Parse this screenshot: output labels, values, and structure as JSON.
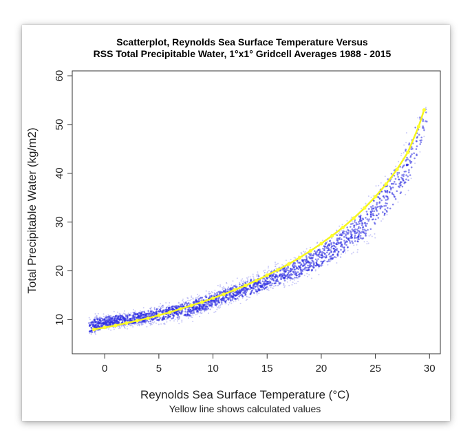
{
  "chart_data": {
    "type": "scatter",
    "title": "Scatterplot, Reynolds Sea Surface Temperature Versus",
    "subtitle": "RSS Total Precipitable Water, 1°x1° Gridcell Averages 1988 - 2015",
    "xlabel": "Reynolds Sea Surface Temperature (°C)",
    "ylabel": "Total Precipitable Water (kg/m2)",
    "caption": "Yellow line shows calculated values",
    "xlim": [
      -3,
      31
    ],
    "ylim": [
      3,
      61
    ],
    "x_ticks": [
      0,
      5,
      10,
      15,
      20,
      25,
      30
    ],
    "y_ticks": [
      10,
      20,
      30,
      40,
      50,
      60
    ],
    "grid": false,
    "colors": {
      "points": "#2a2ae0",
      "fit_line": "#f5f51e",
      "fit_points": "#ffff30",
      "axes": "#333333"
    },
    "series": [
      {
        "name": "Yellow line shows calculated values",
        "x": [
          -1,
          0,
          1,
          2,
          3,
          4,
          5,
          6,
          7,
          8,
          9,
          10,
          11,
          12,
          13,
          14,
          15,
          16,
          17,
          18,
          19,
          20,
          21,
          22,
          23,
          24,
          25,
          26,
          27,
          28,
          29,
          29.5
        ],
        "y": [
          8.0,
          8.4,
          8.8,
          9.3,
          9.8,
          10.3,
          10.9,
          11.5,
          12.2,
          12.9,
          13.6,
          14.4,
          15.2,
          16.1,
          17.0,
          18.0,
          19.1,
          20.2,
          21.4,
          22.7,
          24.1,
          25.6,
          27.2,
          28.9,
          30.8,
          32.9,
          35.2,
          37.8,
          40.8,
          44.3,
          49.6,
          53.0
        ]
      }
    ],
    "scatter_envelope": {
      "x": [
        -1.5,
        0,
        2,
        5,
        8,
        10,
        12,
        15,
        18,
        20,
        22,
        24,
        25,
        26,
        27,
        28,
        29,
        29.8
      ],
      "y_center": [
        8.5,
        9.5,
        10.0,
        11.0,
        12.3,
        14.0,
        15.5,
        18.0,
        20.5,
        23.0,
        26.0,
        29.5,
        32.0,
        35.0,
        38.0,
        42.0,
        48.0,
        52.0
      ],
      "y_spread": [
        3.0,
        2.5,
        2.2,
        2.8,
        3.2,
        3.0,
        3.2,
        3.5,
        4.0,
        4.5,
        5.0,
        6.0,
        7.0,
        7.5,
        8.0,
        8.5,
        7.0,
        4.0
      ]
    }
  }
}
